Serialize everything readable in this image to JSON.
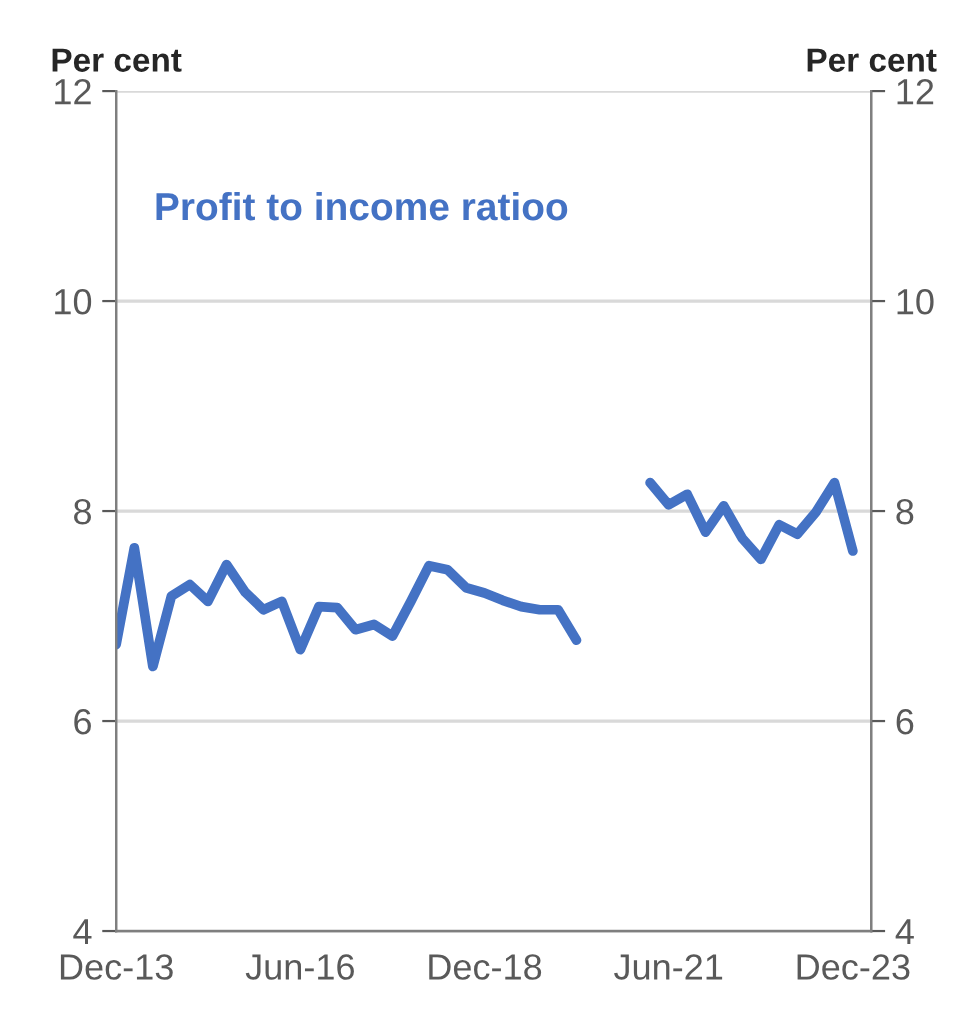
{
  "chart_data": {
    "type": "line",
    "ylabel": "Per cent",
    "y2label": "Per cent",
    "x": [
      "2013-12",
      "2014-03",
      "2014-06",
      "2014-09",
      "2014-12",
      "2015-03",
      "2015-06",
      "2015-09",
      "2015-12",
      "2016-03",
      "2016-06",
      "2016-09",
      "2016-12",
      "2017-03",
      "2017-06",
      "2017-09",
      "2017-12",
      "2018-03",
      "2018-06",
      "2018-09",
      "2018-12",
      "2019-03",
      "2019-06",
      "2019-09",
      "2019-12",
      "2020-03",
      "2020-06",
      "2020-09",
      "2020-12",
      "2021-03",
      "2021-06",
      "2021-09",
      "2021-12",
      "2022-03",
      "2022-06",
      "2022-09",
      "2022-12",
      "2023-03",
      "2023-06",
      "2023-09",
      "2023-12"
    ],
    "series": [
      {
        "name": "Profit to income ratioo",
        "color": "#4472c4",
        "values": [
          6.73,
          7.65,
          6.52,
          7.19,
          7.3,
          7.14,
          7.49,
          7.23,
          7.06,
          7.14,
          6.68,
          7.09,
          7.08,
          6.87,
          6.92,
          6.81,
          7.14,
          7.48,
          7.44,
          7.27,
          7.22,
          7.15,
          7.09,
          7.06,
          7.06,
          6.77,
          null,
          null,
          null,
          8.27,
          8.06,
          8.16,
          7.8,
          8.05,
          7.74,
          7.54,
          7.87,
          7.78,
          7.99,
          8.27,
          7.62
        ]
      }
    ],
    "xlim": [
      "2013-12",
      "2024-03"
    ],
    "xticks": [
      {
        "value": "2013-12",
        "label": "Dec-13"
      },
      {
        "value": "2016-06",
        "label": "Jun-16"
      },
      {
        "value": "2018-12",
        "label": "Dec-18"
      },
      {
        "value": "2021-06",
        "label": "Jun-21"
      },
      {
        "value": "2023-12",
        "label": "Dec-23"
      }
    ],
    "ylim": [
      4,
      12
    ],
    "yticks": [
      4,
      6,
      8,
      10,
      12
    ],
    "y2lim": [
      4,
      12
    ],
    "y2ticks": [
      4,
      6,
      8,
      10,
      12
    ],
    "grid": "y",
    "legend": false,
    "marker": "none",
    "line_style": "solid"
  }
}
